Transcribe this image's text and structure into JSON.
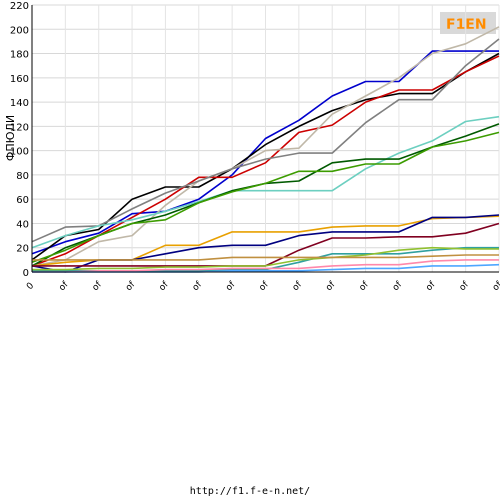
{
  "logo": {
    "text": "F1EN",
    "color": "#ff8c00"
  },
  "footer_text": "http://f1.f-e-n.net/",
  "chart_data": {
    "type": "line",
    "ylabel": "ФПЮЛИ",
    "ylim": [
      0,
      220
    ],
    "yticks": [
      0,
      20,
      40,
      60,
      80,
      100,
      120,
      140,
      160,
      180,
      200,
      220
    ],
    "grid": true,
    "legend": "none",
    "categories": [
      "0",
      "of",
      "of",
      "of",
      "of",
      "of",
      "of",
      "of",
      "of",
      "of",
      "of",
      "of",
      "of",
      "of",
      "of"
    ],
    "series": [
      {
        "color": "#0000cd",
        "values": [
          15,
          25,
          32,
          48,
          50,
          60,
          80,
          110,
          125,
          145,
          157,
          157,
          182,
          182,
          182
        ]
      },
      {
        "color": "#000000",
        "values": [
          10,
          30,
          35,
          60,
          70,
          70,
          85,
          105,
          120,
          133,
          142,
          147,
          147,
          165,
          180
        ]
      },
      {
        "color": "#cc0000",
        "values": [
          5,
          15,
          30,
          45,
          60,
          78,
          78,
          90,
          115,
          121,
          140,
          150,
          150,
          165,
          178
        ]
      },
      {
        "color": "#c0b8a8",
        "values": [
          5,
          10,
          25,
          30,
          55,
          75,
          85,
          100,
          102,
          130,
          145,
          160,
          180,
          188,
          202
        ]
      },
      {
        "color": "#808080",
        "values": [
          25,
          37,
          38,
          52,
          65,
          75,
          85,
          93,
          98,
          98,
          123,
          142,
          142,
          170,
          192
        ]
      },
      {
        "color": "#6ccfc0",
        "values": [
          20,
          30,
          38,
          43,
          50,
          58,
          67,
          67,
          67,
          67,
          85,
          98,
          108,
          124,
          128
        ]
      },
      {
        "color": "#005a00",
        "values": [
          5,
          20,
          30,
          40,
          47,
          57,
          67,
          73,
          75,
          90,
          93,
          93,
          103,
          112,
          122
        ]
      },
      {
        "color": "#3c9c00",
        "values": [
          8,
          18,
          30,
          40,
          43,
          57,
          66,
          73,
          83,
          83,
          89,
          89,
          103,
          108,
          115
        ]
      },
      {
        "color": "#e8a000",
        "values": [
          5,
          8,
          10,
          10,
          22,
          22,
          33,
          33,
          33,
          37,
          38,
          38,
          44,
          45,
          46
        ]
      },
      {
        "color": "#000080",
        "values": [
          5,
          0,
          10,
          10,
          15,
          20,
          22,
          22,
          30,
          33,
          33,
          33,
          45,
          45,
          47
        ]
      },
      {
        "color": "#800020",
        "values": [
          5,
          5,
          5,
          5,
          5,
          5,
          5,
          5,
          18,
          28,
          28,
          29,
          29,
          32,
          40
        ]
      },
      {
        "color": "#30a0a0",
        "values": [
          1,
          1,
          1,
          1,
          1,
          1,
          2,
          2,
          8,
          15,
          15,
          15,
          18,
          20,
          20
        ]
      },
      {
        "color": "#90c030",
        "values": [
          2,
          2,
          3,
          3,
          4,
          4,
          5,
          5,
          10,
          12,
          14,
          18,
          20,
          19,
          19
        ]
      },
      {
        "color": "#c09040",
        "values": [
          10,
          10,
          10,
          10,
          10,
          10,
          12,
          12,
          12,
          12,
          12,
          12,
          13,
          14,
          14
        ]
      },
      {
        "color": "#ff88aa",
        "values": [
          0,
          0,
          1,
          1,
          2,
          2,
          3,
          3,
          3,
          5,
          6,
          6,
          9,
          10,
          10
        ]
      },
      {
        "color": "#4da6ff",
        "values": [
          0,
          0,
          0,
          0,
          0,
          0,
          1,
          1,
          1,
          2,
          3,
          3,
          5,
          5,
          6
        ]
      }
    ]
  }
}
